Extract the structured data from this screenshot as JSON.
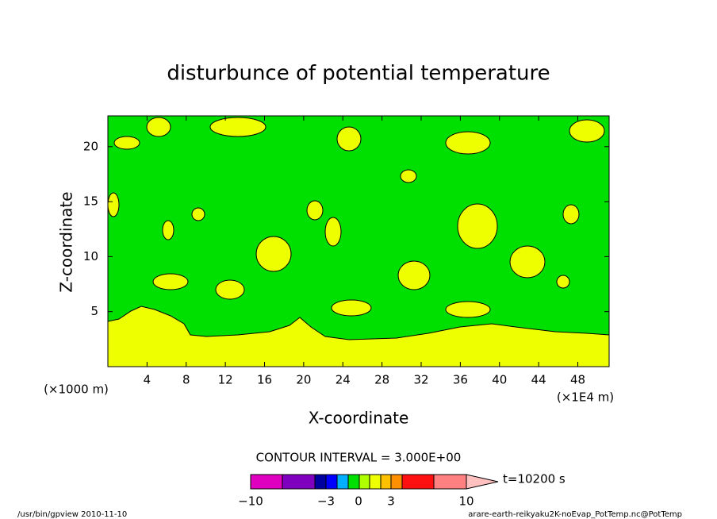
{
  "chart_data": {
    "type": "contour",
    "title": "disturbunce of potential temperature",
    "x_label": "X-coordinate",
    "y_label": "Z-coordinate",
    "x_unit": "(×1E4 m)",
    "y_unit": "(×1000 m)",
    "xlim": [
      0,
      51.2
    ],
    "xticks": [
      4,
      8,
      12,
      16,
      20,
      24,
      28,
      32,
      36,
      40,
      44,
      48
    ],
    "ylim": [
      0,
      22.8
    ],
    "yticks": [
      5,
      10,
      15,
      20
    ],
    "fill_colors": {
      "low": "#00e000",
      "high": "#eeff00"
    },
    "contour_interval": "CONTOUR INTERVAL = 3.000E+00",
    "time_label": "t=10200 s",
    "colorbar": {
      "colors": [
        "#e000c0",
        "#8000c0",
        "#0000a0",
        "#0000ff",
        "#00b0ff",
        "#00e000",
        "#b0ff00",
        "#eeff00",
        "#ffc000",
        "#ff9000",
        "#ff1010",
        "#ff8080",
        "#ffc0c0"
      ],
      "ticks": [
        {
          "value": -10,
          "label": "−10"
        },
        {
          "value": -3,
          "label": "−3"
        },
        0,
        3,
        10
      ]
    },
    "footer_left": "/usr/bin/gpview  2010-11-10",
    "footer_right": "arare-earth-reikyaku2K-noEvap_PotTemp.nc@PotTemp"
  }
}
